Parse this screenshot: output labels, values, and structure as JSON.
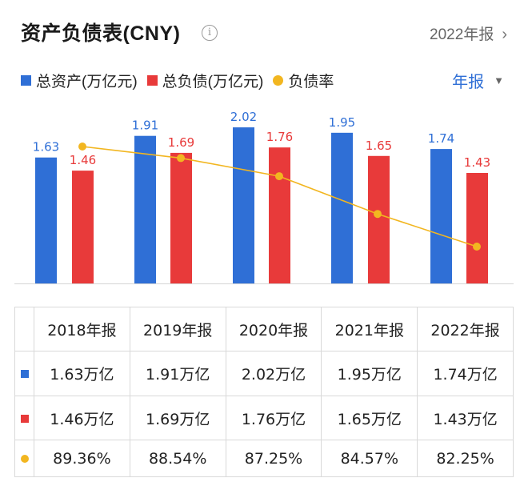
{
  "header": {
    "title": "资产负债表(CNY)",
    "info_icon": "info-icon",
    "period_link": "2022年报",
    "chevron_icon": "chevron-right-icon"
  },
  "controls": {
    "period_select": "年报",
    "dropdown_icon": "triangle-down-icon"
  },
  "colors": {
    "assets": "#2f6fd6",
    "liabilities": "#e83a3a",
    "ratio": "#f2b620"
  },
  "chart_data": {
    "type": "bar",
    "categories": [
      "2018年报",
      "2019年报",
      "2020年报",
      "2021年报",
      "2022年报"
    ],
    "series": [
      {
        "name": "总资产(万亿元)",
        "type": "bar",
        "values": [
          1.63,
          1.91,
          2.02,
          1.95,
          1.74
        ],
        "labels": [
          "1.63",
          "1.91",
          "2.02",
          "1.95",
          "1.74"
        ]
      },
      {
        "name": "总负债(万亿元)",
        "type": "bar",
        "values": [
          1.46,
          1.69,
          1.76,
          1.65,
          1.43
        ],
        "labels": [
          "1.46",
          "1.69",
          "1.76",
          "1.65",
          "1.43"
        ]
      },
      {
        "name": "负债率",
        "type": "line",
        "values": [
          89.36,
          88.54,
          87.25,
          84.57,
          82.25
        ]
      }
    ],
    "legend_position": "top-left",
    "grid": false
  },
  "table": {
    "headers": [
      "2018年报",
      "2019年报",
      "2020年报",
      "2021年报",
      "2022年报"
    ],
    "rows": [
      {
        "key": "assets",
        "cells": [
          "1.63万亿",
          "1.91万亿",
          "2.02万亿",
          "1.95万亿",
          "1.74万亿"
        ]
      },
      {
        "key": "liabilities",
        "cells": [
          "1.46万亿",
          "1.69万亿",
          "1.76万亿",
          "1.65万亿",
          "1.43万亿"
        ]
      },
      {
        "key": "ratio",
        "cells": [
          "89.36%",
          "88.54%",
          "87.25%",
          "84.57%",
          "82.25%"
        ]
      }
    ]
  }
}
